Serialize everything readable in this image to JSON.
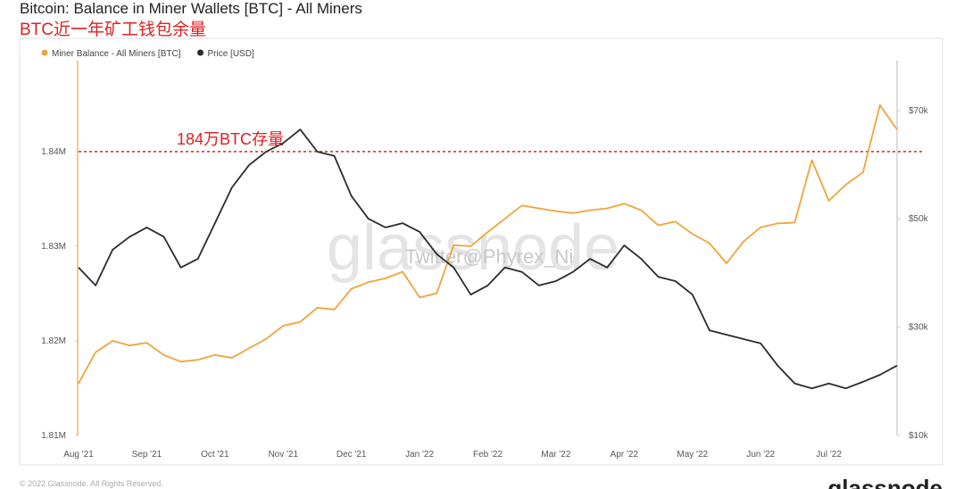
{
  "chart_data": {
    "type": "line",
    "title": "Bitcoin: Balance in Miner Wallets [BTC] - All Miners",
    "subtitle": "BTC近一年矿工钱包余量",
    "watermark": "glassnode",
    "credit": "Twitter@Phyrex_Ni",
    "footer": "© 2022 Glassnode. All Rights Reserved.",
    "logo": "glassnode",
    "categories": [
      "Aug '21",
      null,
      null,
      null,
      "Sep '21",
      null,
      null,
      null,
      "Oct '21",
      null,
      null,
      null,
      "Nov '21",
      null,
      null,
      null,
      "Dec '21",
      null,
      null,
      null,
      "Jan '22",
      null,
      null,
      null,
      "Feb '22",
      null,
      null,
      null,
      "Mar '22",
      null,
      null,
      null,
      "Apr '22",
      null,
      null,
      null,
      "May '22",
      null,
      null,
      null,
      "Jun '22",
      null,
      null,
      null,
      "Jul '22",
      null,
      null,
      null,
      null
    ],
    "series": [
      {
        "name": "Miner Balance - All Miners [BTC]",
        "color": "#f0a43a",
        "values": [
          1815500,
          1818800,
          1820000,
          1819500,
          1819800,
          1818500,
          1817800,
          1818000,
          1818500,
          1818200,
          1819200,
          1820200,
          1821600,
          1822000,
          1823500,
          1823300,
          1825500,
          1826200,
          1826600,
          1827300,
          1824600,
          1825000,
          1830100,
          1830000,
          1831500,
          1832900,
          1834300,
          1834000,
          1833700,
          1833500,
          1833800,
          1834000,
          1834500,
          1833800,
          1832200,
          1832600,
          1831300,
          1830300,
          1828200,
          1830500,
          1832000,
          1832400,
          1832500,
          1839100,
          1834800,
          1836500,
          1837800,
          1844900,
          1842300
        ]
      },
      {
        "name": "Price [USD]",
        "color": "#2b2b2b",
        "axis": "y2",
        "values": [
          41000,
          37700,
          44300,
          46700,
          48400,
          46700,
          41000,
          42600,
          49200,
          55800,
          59900,
          62400,
          64000,
          66500,
          62400,
          61600,
          54200,
          50000,
          48400,
          49200,
          47600,
          43500,
          41000,
          36000,
          37700,
          41000,
          40200,
          37700,
          38500,
          40200,
          42600,
          41000,
          45100,
          42600,
          39300,
          38500,
          36000,
          29400,
          28600,
          27800,
          27000,
          22900,
          19600,
          18700,
          19600,
          18700,
          19900,
          21200,
          22900
        ]
      }
    ],
    "ylim": [
      1810000,
      1849600
    ],
    "yticks": [
      {
        "value": 1810000,
        "label": "1.81M"
      },
      {
        "value": 1820000,
        "label": "1.82M"
      },
      {
        "value": 1830000,
        "label": "1.83M"
      },
      {
        "value": 1840000,
        "label": "1.84M"
      }
    ],
    "y2lim": [
      10000,
      79200
    ],
    "y2ticks": [
      {
        "value": 10000,
        "label": "$10k"
      },
      {
        "value": 30000,
        "label": "$30k"
      },
      {
        "value": 50000,
        "label": "$50k"
      },
      {
        "value": 70000,
        "label": "$70k"
      }
    ],
    "legend": "top-left",
    "annotation": {
      "text": "184万BTC存量",
      "value": 1840000,
      "color": "#e02020"
    }
  }
}
